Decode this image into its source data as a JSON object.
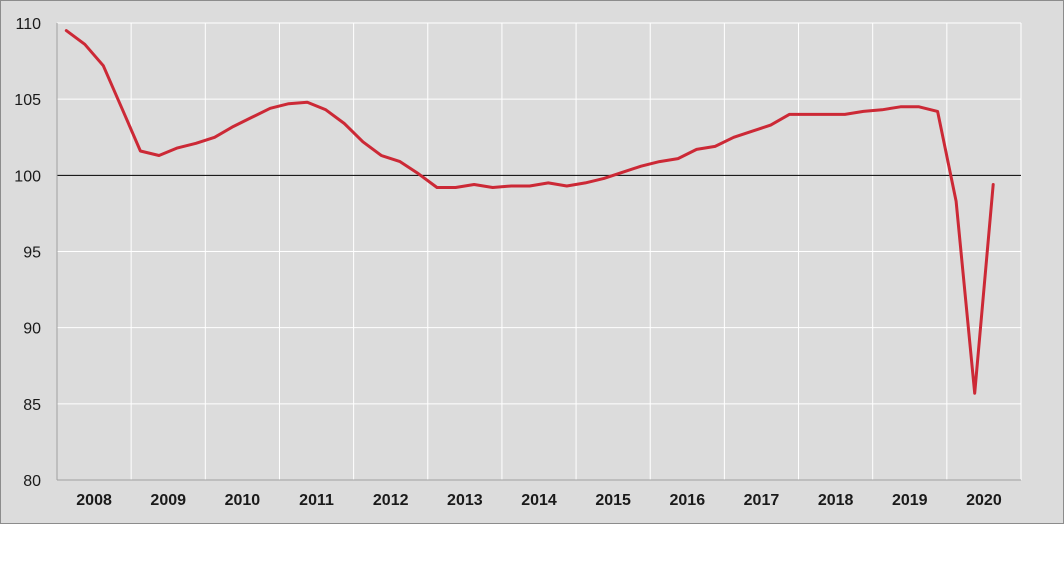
{
  "chart_data": {
    "type": "line",
    "title": "",
    "xlabel": "",
    "ylabel": "",
    "ylim": [
      80,
      110
    ],
    "yticks": [
      80,
      85,
      90,
      95,
      100,
      105,
      110
    ],
    "xlim": [
      2007.5,
      2020.5
    ],
    "year_labels": [
      "2008",
      "2009",
      "2010",
      "2011",
      "2012",
      "2013",
      "2014",
      "2015",
      "2016",
      "2017",
      "2018",
      "2019",
      "2020"
    ],
    "reference_line": 100,
    "grid": true,
    "legend": "none",
    "colors": {
      "line": "#cc2936",
      "background": "#dcdcdc",
      "grid": "#ffffff",
      "reference": "#000000"
    },
    "series": [
      {
        "x": [
          2007.625,
          2007.875,
          2008.125,
          2008.375,
          2008.625,
          2008.875,
          2009.125,
          2009.375,
          2009.625,
          2009.875,
          2010.125,
          2010.375,
          2010.625,
          2010.875,
          2011.125,
          2011.375,
          2011.625,
          2011.875,
          2012.125,
          2012.375,
          2012.625,
          2012.875,
          2013.125,
          2013.375,
          2013.625,
          2013.875,
          2014.125,
          2014.375,
          2014.625,
          2014.875,
          2015.125,
          2015.375,
          2015.625,
          2015.875,
          2016.125,
          2016.375,
          2016.625,
          2016.875,
          2017.125,
          2017.375,
          2017.625,
          2017.875,
          2018.125,
          2018.375,
          2018.625,
          2018.875,
          2019.125,
          2019.375,
          2019.625,
          2019.875,
          2020.125
        ],
        "values": [
          109.5,
          108.6,
          107.2,
          104.4,
          101.6,
          101.3,
          101.8,
          102.1,
          102.5,
          103.2,
          103.8,
          104.4,
          104.7,
          104.8,
          104.3,
          103.4,
          102.2,
          101.3,
          100.9,
          100.1,
          99.2,
          99.2,
          99.4,
          99.2,
          99.3,
          99.3,
          99.5,
          99.3,
          99.5,
          99.8,
          100.2,
          100.6,
          100.9,
          101.1,
          101.7,
          101.9,
          102.5,
          102.9,
          103.3,
          104.0,
          104.0,
          104.0,
          104.0,
          104.2,
          104.3,
          104.5,
          104.5,
          104.2,
          98.3,
          85.7,
          99.4
        ]
      }
    ]
  }
}
